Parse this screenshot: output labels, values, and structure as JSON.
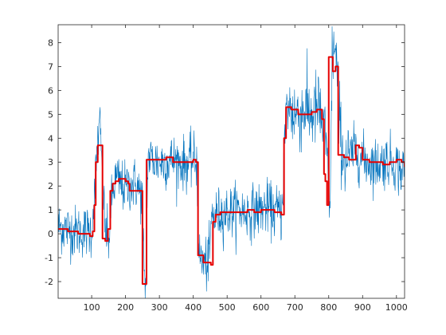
{
  "chart_data": {
    "type": "line",
    "title": "",
    "xlabel": "",
    "ylabel": "",
    "xlim": [
      1,
      1024
    ],
    "ylim": [
      -2.7,
      8.75
    ],
    "grid": false,
    "legend": null,
    "x_ticks": [
      {
        "value": 100,
        "label": "100"
      },
      {
        "value": 200,
        "label": "200"
      },
      {
        "value": 300,
        "label": "300"
      },
      {
        "value": 400,
        "label": "400"
      },
      {
        "value": 500,
        "label": "500"
      },
      {
        "value": 600,
        "label": "600"
      },
      {
        "value": 700,
        "label": "700"
      },
      {
        "value": 800,
        "label": "800"
      },
      {
        "value": 900,
        "label": "900"
      },
      {
        "value": 1000,
        "label": "1000"
      }
    ],
    "y_ticks": [
      {
        "value": -2,
        "label": "-2"
      },
      {
        "value": -1,
        "label": "-1"
      },
      {
        "value": 0,
        "label": "0"
      },
      {
        "value": 1,
        "label": "1"
      },
      {
        "value": 2,
        "label": "2"
      },
      {
        "value": 3,
        "label": "3"
      },
      {
        "value": 4,
        "label": "4"
      },
      {
        "value": 5,
        "label": "5"
      },
      {
        "value": 6,
        "label": "6"
      },
      {
        "value": 7,
        "label": "7"
      },
      {
        "value": 8,
        "label": "8"
      }
    ],
    "series": [
      {
        "color": "#0072bd",
        "style": "noisy-signal",
        "x": [
          1,
          50,
          100,
          110,
          118,
          125,
          130,
          140,
          150,
          160,
          170,
          180,
          190,
          200,
          210,
          230,
          240,
          250,
          255,
          260,
          266,
          280,
          300,
          320,
          340,
          360,
          380,
          400,
          410,
          418,
          430,
          440,
          448,
          455,
          460,
          470,
          500,
          530,
          560,
          590,
          620,
          640,
          650,
          660,
          665,
          670,
          675,
          690,
          710,
          730,
          750,
          770,
          790,
          800,
          805,
          810,
          815,
          820,
          825,
          830,
          840,
          850,
          860,
          880,
          900,
          920,
          940,
          960,
          980,
          1000,
          1010,
          1024
        ],
        "y": [
          0.3,
          0.1,
          0.1,
          2.0,
          4.0,
          4.5,
          3.0,
          0.2,
          -0.3,
          1.5,
          2.3,
          2.2,
          2.0,
          1.9,
          2.0,
          2.1,
          1.8,
          1.5,
          -2.0,
          -2.1,
          3.2,
          3.1,
          3.0,
          3.0,
          3.1,
          3.0,
          2.9,
          3.1,
          3.0,
          -1.0,
          -1.2,
          -1.3,
          -0.9,
          0.8,
          0.7,
          0.8,
          0.9,
          1.0,
          0.9,
          1.0,
          1.1,
          0.9,
          1.0,
          0.8,
          2.0,
          4.0,
          5.3,
          5.1,
          5.0,
          5.2,
          5.0,
          5.3,
          4.0,
          2.3,
          1.2,
          7.5,
          7.8,
          7.3,
          6.8,
          5.0,
          3.5,
          3.0,
          3.2,
          3.5,
          3.1,
          3.0,
          2.9,
          3.0,
          3.1,
          2.9,
          2.6,
          2.7
        ]
      },
      {
        "color": "#e60000",
        "style": "step",
        "x": [
          1,
          30,
          60,
          80,
          95,
          103,
          108,
          112,
          118,
          125,
          132,
          140,
          148,
          155,
          162,
          170,
          180,
          200,
          208,
          212,
          232,
          238,
          250,
          256,
          262,
          266,
          280,
          300,
          320,
          340,
          360,
          380,
          400,
          408,
          414,
          430,
          445,
          452,
          458,
          466,
          480,
          500,
          520,
          540,
          560,
          580,
          600,
          620,
          640,
          660,
          668,
          674,
          690,
          710,
          730,
          750,
          765,
          780,
          786,
          790,
          795,
          800,
          806,
          812,
          820,
          828,
          834,
          845,
          860,
          880,
          890,
          900,
          920,
          940,
          960,
          980,
          1000,
          1015,
          1024
        ],
        "y": [
          0.2,
          0.1,
          0.0,
          0.0,
          -0.1,
          0.1,
          1.2,
          3.0,
          3.7,
          3.7,
          -0.2,
          -0.3,
          0.2,
          1.8,
          2.1,
          2.2,
          2.3,
          2.2,
          2.1,
          1.8,
          1.8,
          1.8,
          -2.1,
          -2.1,
          3.1,
          3.1,
          3.1,
          3.1,
          3.2,
          3.0,
          3.0,
          3.0,
          3.1,
          3.0,
          -0.9,
          -1.2,
          -1.2,
          -1.3,
          0.5,
          0.8,
          0.9,
          0.9,
          0.9,
          0.9,
          1.0,
          0.9,
          1.0,
          1.0,
          0.9,
          0.8,
          4.0,
          5.3,
          5.2,
          5.0,
          5.0,
          5.1,
          5.2,
          4.8,
          2.5,
          2.2,
          1.2,
          7.4,
          7.4,
          6.8,
          7.0,
          3.3,
          3.3,
          3.2,
          3.1,
          3.7,
          3.6,
          3.1,
          3.0,
          3.0,
          2.9,
          3.0,
          3.1,
          3.0,
          2.8
        ]
      }
    ]
  }
}
